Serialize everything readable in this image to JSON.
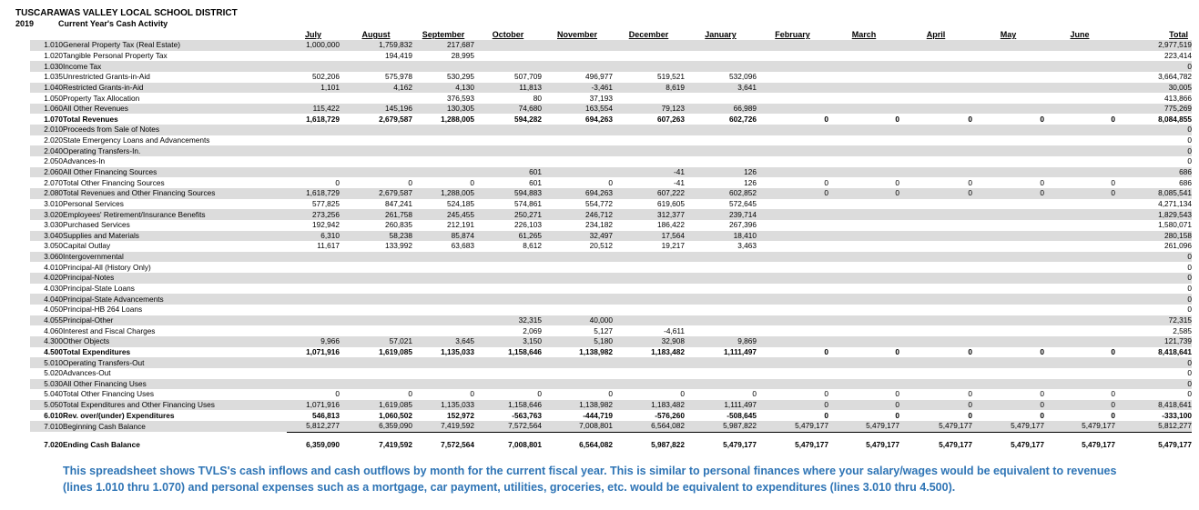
{
  "district": "TUSCARAWAS VALLEY LOCAL SCHOOL DISTRICT",
  "year": "2019",
  "subtitle": "Current Year's Cash Activity",
  "columns": [
    "July",
    "August",
    "September",
    "October",
    "November",
    "December",
    "January",
    "February",
    "March",
    "April",
    "May",
    "June",
    "Total"
  ],
  "rows": [
    {
      "code": "1.010",
      "label": "General Property Tax (Real Estate)",
      "shade": true,
      "v": [
        "1,000,000",
        "1,759,832",
        "217,687",
        "",
        "",
        "",
        "",
        "",
        "",
        "",
        "",
        "",
        "2,977,519"
      ]
    },
    {
      "code": "1.020",
      "label": "Tangible Personal Property Tax",
      "v": [
        "",
        "194,419",
        "28,995",
        "",
        "",
        "",
        "",
        "",
        "",
        "",
        "",
        "",
        "223,414"
      ]
    },
    {
      "code": "1.030",
      "label": "Income Tax",
      "shade": true,
      "v": [
        "",
        "",
        "",
        "",
        "",
        "",
        "",
        "",
        "",
        "",
        "",
        "",
        "0"
      ]
    },
    {
      "code": "1.035",
      "label": "Unrestricted Grants-in-Aid",
      "v": [
        "502,206",
        "575,978",
        "530,295",
        "507,709",
        "496,977",
        "519,521",
        "532,096",
        "",
        "",
        "",
        "",
        "",
        "3,664,782"
      ]
    },
    {
      "code": "1.040",
      "label": "Restricted Grants-in-Aid",
      "shade": true,
      "v": [
        "1,101",
        "4,162",
        "4,130",
        "11,813",
        "-3,461",
        "8,619",
        "3,641",
        "",
        "",
        "",
        "",
        "",
        "30,005"
      ]
    },
    {
      "code": "1.050",
      "label": "Property Tax Allocation",
      "v": [
        "",
        "",
        "376,593",
        "80",
        "37,193",
        "",
        "",
        "",
        "",
        "",
        "",
        "",
        "413,866"
      ]
    },
    {
      "code": "1.060",
      "label": "All Other Revenues",
      "shade": true,
      "v": [
        "115,422",
        "145,196",
        "130,305",
        "74,680",
        "163,554",
        "79,123",
        "66,989",
        "",
        "",
        "",
        "",
        "",
        "775,269"
      ]
    },
    {
      "code": "1.070",
      "label": "Total Revenues",
      "bold": true,
      "v": [
        "1,618,729",
        "2,679,587",
        "1,288,005",
        "594,282",
        "694,263",
        "607,263",
        "602,726",
        "0",
        "0",
        "0",
        "0",
        "0",
        "8,084,855"
      ]
    },
    {
      "code": "2.010",
      "label": "Proceeds from Sale of Notes",
      "shade": true,
      "v": [
        "",
        "",
        "",
        "",
        "",
        "",
        "",
        "",
        "",
        "",
        "",
        "",
        "0"
      ]
    },
    {
      "code": "2.020",
      "label": "State Emergency Loans and Advancements",
      "v": [
        "",
        "",
        "",
        "",
        "",
        "",
        "",
        "",
        "",
        "",
        "",
        "",
        "0"
      ]
    },
    {
      "code": "2.040",
      "label": "Operating Transfers-In.",
      "shade": true,
      "v": [
        "",
        "",
        "",
        "",
        "",
        "",
        "",
        "",
        "",
        "",
        "",
        "",
        "0"
      ]
    },
    {
      "code": "2.050",
      "label": "Advances-In",
      "v": [
        "",
        "",
        "",
        "",
        "",
        "",
        "",
        "",
        "",
        "",
        "",
        "",
        "0"
      ]
    },
    {
      "code": "2.060",
      "label": "All Other Financing Sources",
      "shade": true,
      "v": [
        "",
        "",
        "",
        "601",
        "",
        "-41",
        "126",
        "",
        "",
        "",
        "",
        "",
        "686"
      ]
    },
    {
      "code": "2.070",
      "label": "Total Other Financing Sources",
      "v": [
        "0",
        "0",
        "0",
        "601",
        "0",
        "-41",
        "126",
        "0",
        "0",
        "0",
        "0",
        "0",
        "686"
      ]
    },
    {
      "code": "2.080",
      "label": "Total Revenues and Other Financing Sources",
      "shade": true,
      "v": [
        "1,618,729",
        "2,679,587",
        "1,288,005",
        "594,883",
        "694,263",
        "607,222",
        "602,852",
        "0",
        "0",
        "0",
        "0",
        "0",
        "8,085,541"
      ]
    },
    {
      "code": "3.010",
      "label": "Personal Services",
      "v": [
        "577,825",
        "847,241",
        "524,185",
        "574,861",
        "554,772",
        "619,605",
        "572,645",
        "",
        "",
        "",
        "",
        "",
        "4,271,134"
      ]
    },
    {
      "code": "3.020",
      "label": "Employees' Retirement/Insurance Benefits",
      "shade": true,
      "v": [
        "273,256",
        "261,758",
        "245,455",
        "250,271",
        "246,712",
        "312,377",
        "239,714",
        "",
        "",
        "",
        "",
        "",
        "1,829,543"
      ]
    },
    {
      "code": "3.030",
      "label": "Purchased Services",
      "v": [
        "192,942",
        "260,835",
        "212,191",
        "226,103",
        "234,182",
        "186,422",
        "267,396",
        "",
        "",
        "",
        "",
        "",
        "1,580,071"
      ]
    },
    {
      "code": "3.040",
      "label": "Supplies and Materials",
      "shade": true,
      "v": [
        "6,310",
        "58,238",
        "85,874",
        "61,265",
        "32,497",
        "17,564",
        "18,410",
        "",
        "",
        "",
        "",
        "",
        "280,158"
      ]
    },
    {
      "code": "3.050",
      "label": "Capital Outlay",
      "v": [
        "11,617",
        "133,992",
        "63,683",
        "8,612",
        "20,512",
        "19,217",
        "3,463",
        "",
        "",
        "",
        "",
        "",
        "261,096"
      ]
    },
    {
      "code": "3.060",
      "label": "Intergovernmental",
      "shade": true,
      "v": [
        "",
        "",
        "",
        "",
        "",
        "",
        "",
        "",
        "",
        "",
        "",
        "",
        "0"
      ]
    },
    {
      "code": "4.010",
      "label": "Principal-All (History Only)",
      "indent": true,
      "v": [
        "",
        "",
        "",
        "",
        "",
        "",
        "",
        "",
        "",
        "",
        "",
        "",
        "0"
      ]
    },
    {
      "code": "4.020",
      "label": "Principal-Notes",
      "indent": true,
      "shade": true,
      "v": [
        "",
        "",
        "",
        "",
        "",
        "",
        "",
        "",
        "",
        "",
        "",
        "",
        "0"
      ]
    },
    {
      "code": "4.030",
      "label": "Principal-State Loans",
      "indent": true,
      "v": [
        "",
        "",
        "",
        "",
        "",
        "",
        "",
        "",
        "",
        "",
        "",
        "",
        "0"
      ]
    },
    {
      "code": "4.040",
      "label": "Principal-State Advancements",
      "indent": true,
      "shade": true,
      "v": [
        "",
        "",
        "",
        "",
        "",
        "",
        "",
        "",
        "",
        "",
        "",
        "",
        "0"
      ]
    },
    {
      "code": "4.050",
      "label": "Principal-HB 264 Loans",
      "indent": true,
      "v": [
        "",
        "",
        "",
        "",
        "",
        "",
        "",
        "",
        "",
        "",
        "",
        "",
        "0"
      ]
    },
    {
      "code": "4.055",
      "label": "Principal-Other",
      "indent": true,
      "shade": true,
      "v": [
        "",
        "",
        "",
        "32,315",
        "40,000",
        "",
        "",
        "",
        "",
        "",
        "",
        "",
        "72,315"
      ]
    },
    {
      "code": "4.060",
      "label": "Interest and Fiscal Charges",
      "indent": true,
      "v": [
        "",
        "",
        "",
        "2,069",
        "5,127",
        "-4,611",
        "",
        "",
        "",
        "",
        "",
        "",
        "2,585"
      ]
    },
    {
      "code": "4.300",
      "label": "Other Objects",
      "shade": true,
      "v": [
        "9,966",
        "57,021",
        "3,645",
        "3,150",
        "5,180",
        "32,908",
        "9,869",
        "",
        "",
        "",
        "",
        "",
        "121,739"
      ]
    },
    {
      "code": "4.500",
      "label": "Total Expenditures",
      "bold": true,
      "v": [
        "1,071,916",
        "1,619,085",
        "1,135,033",
        "1,158,646",
        "1,138,982",
        "1,183,482",
        "1,111,497",
        "0",
        "0",
        "0",
        "0",
        "0",
        "8,418,641"
      ]
    },
    {
      "code": "5.010",
      "label": "Operating Transfers-Out",
      "shade": true,
      "v": [
        "",
        "",
        "",
        "",
        "",
        "",
        "",
        "",
        "",
        "",
        "",
        "",
        "0"
      ]
    },
    {
      "code": "5.020",
      "label": "Advances-Out",
      "v": [
        "",
        "",
        "",
        "",
        "",
        "",
        "",
        "",
        "",
        "",
        "",
        "",
        "0"
      ]
    },
    {
      "code": "5.030",
      "label": "All Other Financing Uses",
      "shade": true,
      "v": [
        "",
        "",
        "",
        "",
        "",
        "",
        "",
        "",
        "",
        "",
        "",
        "",
        "0"
      ]
    },
    {
      "code": "5.040",
      "label": "Total Other Financing Uses",
      "v": [
        "0",
        "0",
        "0",
        "0",
        "0",
        "0",
        "0",
        "0",
        "0",
        "0",
        "0",
        "0",
        "0"
      ]
    },
    {
      "code": "5.050",
      "label": "Total Expenditures and Other Financing Uses",
      "shade": true,
      "v": [
        "1,071,916",
        "1,619,085",
        "1,135,033",
        "1,158,646",
        "1,138,982",
        "1,183,482",
        "1,111,497",
        "0",
        "0",
        "0",
        "0",
        "0",
        "8,418,641"
      ]
    },
    {
      "code": "6.010",
      "label": "Rev. over/(under) Expenditures",
      "bold": true,
      "v": [
        "546,813",
        "1,060,502",
        "152,972",
        "-563,763",
        "-444,719",
        "-576,260",
        "-508,645",
        "0",
        "0",
        "0",
        "0",
        "0",
        "-333,100"
      ]
    },
    {
      "code": "7.010",
      "label": "Beginning Cash Balance",
      "shade": true,
      "v": [
        "5,812,277",
        "6,359,090",
        "7,419,592",
        "7,572,564",
        "7,008,801",
        "6,564,082",
        "5,987,822",
        "5,479,177",
        "5,479,177",
        "5,479,177",
        "5,479,177",
        "5,479,177",
        "5,812,277"
      ]
    },
    {
      "code": "7.020",
      "label": "Ending Cash Balance",
      "bold": true,
      "ends": true,
      "v": [
        "6,359,090",
        "7,419,592",
        "7,572,564",
        "7,008,801",
        "6,564,082",
        "5,987,822",
        "5,479,177",
        "5,479,177",
        "5,479,177",
        "5,479,177",
        "5,479,177",
        "5,479,177",
        "5,479,177"
      ]
    }
  ],
  "note": "This spreadsheet shows TVLS's cash inflows and cash outflows by month for the current fiscal year.  This is similar to personal finances where your salary/wages would be equivalent to revenues (lines 1.010 thru 1.070) and personal expenses such as a mortgage, car payment, utilities, groceries, etc. would be equivalent to expenditures (lines 3.010 thru 4.500)."
}
